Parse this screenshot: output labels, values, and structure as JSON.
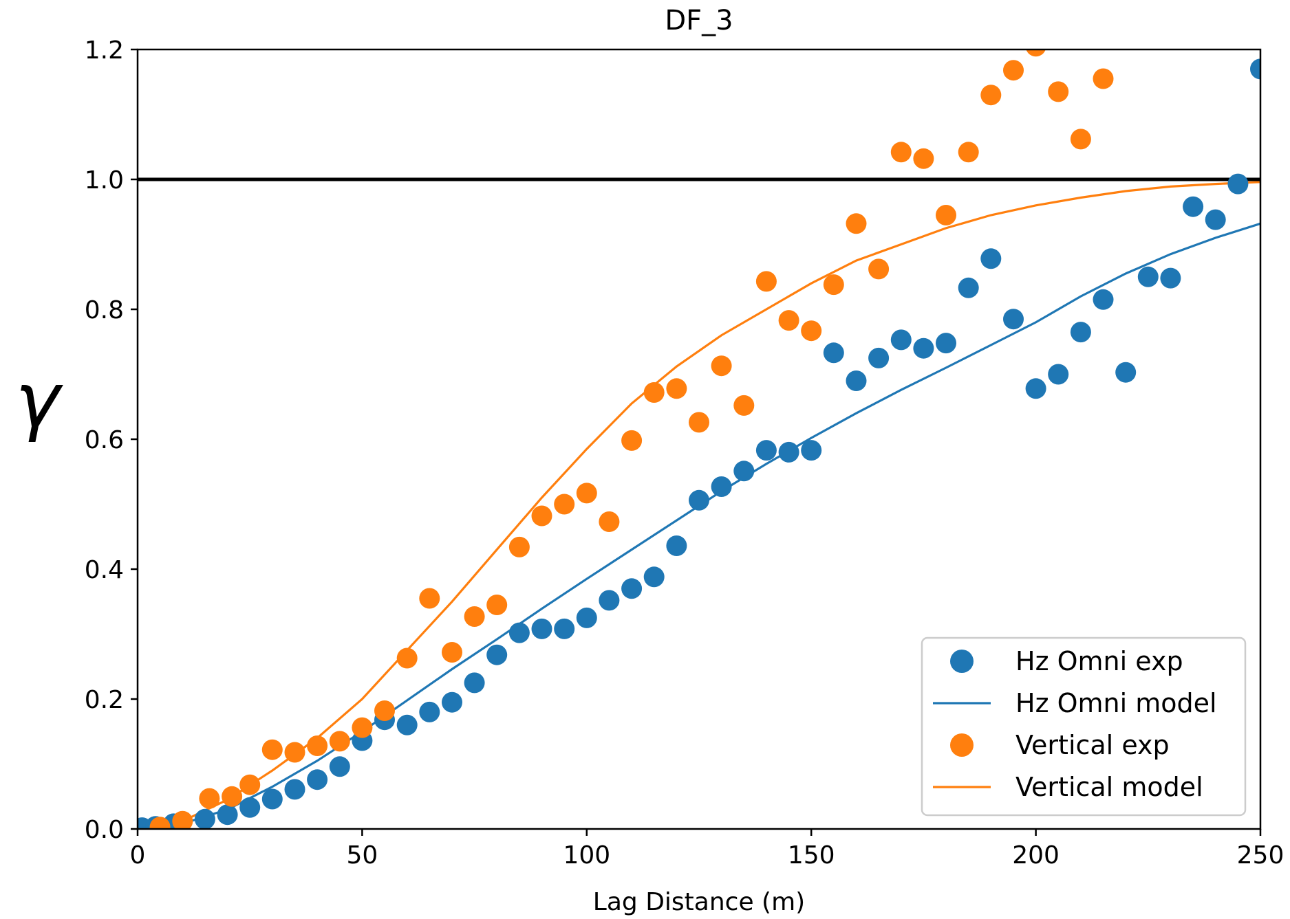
{
  "chart_data": {
    "type": "scatter",
    "title": "DF_3",
    "xlabel": "Lag Distance (m)",
    "ylabel": "γ",
    "xlim": [
      0,
      250
    ],
    "ylim": [
      0,
      1.2
    ],
    "xticks": [
      0,
      50,
      100,
      150,
      200,
      250
    ],
    "yticks": [
      0.0,
      0.2,
      0.4,
      0.6,
      0.8,
      1.0,
      1.2
    ],
    "xtick_labels": [
      "0",
      "50",
      "100",
      "150",
      "200",
      "250"
    ],
    "ytick_labels": [
      "0.0",
      "0.2",
      "0.4",
      "0.6",
      "0.8",
      "1.0",
      "1.2"
    ],
    "sill_line": 1.0,
    "grid": false,
    "legend_placement": "lower-right",
    "colors": {
      "blue": "#1f77b4",
      "orange": "#ff7f0e",
      "sill": "#000000"
    },
    "series": [
      {
        "name": "Hz Omni exp",
        "kind": "points",
        "color": "#1f77b4",
        "x": [
          1,
          4,
          8,
          15,
          20,
          25,
          30,
          35,
          40,
          45,
          50,
          55,
          60,
          65,
          70,
          75,
          80,
          85,
          90,
          95,
          100,
          105,
          110,
          115,
          120,
          125,
          130,
          135,
          140,
          145,
          150,
          155,
          160,
          165,
          170,
          175,
          180,
          185,
          190,
          195,
          200,
          205,
          210,
          215,
          220,
          225,
          230,
          235,
          240,
          245,
          250
        ],
        "y": [
          0.002,
          0.004,
          0.008,
          0.015,
          0.022,
          0.033,
          0.046,
          0.061,
          0.076,
          0.096,
          0.136,
          0.168,
          0.16,
          0.18,
          0.195,
          0.225,
          0.268,
          0.302,
          0.308,
          0.308,
          0.325,
          0.352,
          0.37,
          0.388,
          0.436,
          0.506,
          0.527,
          0.551,
          0.583,
          0.58,
          0.583,
          0.733,
          0.69,
          0.725,
          0.753,
          0.74,
          0.748,
          0.833,
          0.878,
          0.785,
          0.678,
          0.7,
          0.765,
          0.815,
          0.703,
          0.85,
          0.848,
          0.958,
          0.938,
          0.993,
          1.17
        ]
      },
      {
        "name": "Hz Omni model",
        "kind": "line",
        "color": "#1f77b4",
        "x": [
          0,
          10,
          20,
          30,
          40,
          50,
          60,
          70,
          80,
          90,
          100,
          110,
          120,
          130,
          140,
          150,
          160,
          170,
          180,
          190,
          200,
          210,
          220,
          230,
          240,
          250
        ],
        "y": [
          0.0,
          0.008,
          0.03,
          0.065,
          0.105,
          0.15,
          0.198,
          0.246,
          0.292,
          0.339,
          0.385,
          0.43,
          0.475,
          0.52,
          0.562,
          0.602,
          0.64,
          0.676,
          0.71,
          0.745,
          0.78,
          0.82,
          0.855,
          0.885,
          0.91,
          0.932
        ]
      },
      {
        "name": "Vertical exp",
        "kind": "points",
        "color": "#ff7f0e",
        "x": [
          5,
          10,
          16,
          21,
          25,
          30,
          35,
          40,
          45,
          50,
          55,
          60,
          65,
          70,
          75,
          80,
          85,
          90,
          95,
          100,
          105,
          110,
          115,
          120,
          125,
          130,
          135,
          140,
          145,
          150,
          155,
          160,
          165,
          170,
          175,
          180,
          185,
          190,
          195,
          200,
          205,
          210,
          215
        ],
        "y": [
          0.003,
          0.012,
          0.047,
          0.05,
          0.068,
          0.122,
          0.118,
          0.128,
          0.135,
          0.156,
          0.182,
          0.263,
          0.355,
          0.272,
          0.327,
          0.345,
          0.434,
          0.482,
          0.5,
          0.517,
          0.473,
          0.598,
          0.672,
          0.678,
          0.626,
          0.713,
          0.652,
          0.843,
          0.783,
          0.767,
          0.838,
          0.932,
          0.862,
          1.042,
          1.032,
          0.945,
          1.042,
          1.13,
          1.168,
          1.205,
          1.135,
          1.062,
          1.155
        ]
      },
      {
        "name": "Vertical model",
        "kind": "line",
        "color": "#ff7f0e",
        "x": [
          0,
          10,
          20,
          30,
          40,
          50,
          60,
          70,
          80,
          90,
          100,
          110,
          120,
          130,
          140,
          150,
          160,
          170,
          180,
          190,
          200,
          210,
          220,
          230,
          240,
          250
        ],
        "y": [
          0.0,
          0.012,
          0.045,
          0.09,
          0.14,
          0.2,
          0.275,
          0.35,
          0.43,
          0.51,
          0.585,
          0.655,
          0.712,
          0.76,
          0.8,
          0.84,
          0.875,
          0.9,
          0.925,
          0.945,
          0.96,
          0.972,
          0.982,
          0.989,
          0.993,
          0.996
        ]
      }
    ]
  }
}
